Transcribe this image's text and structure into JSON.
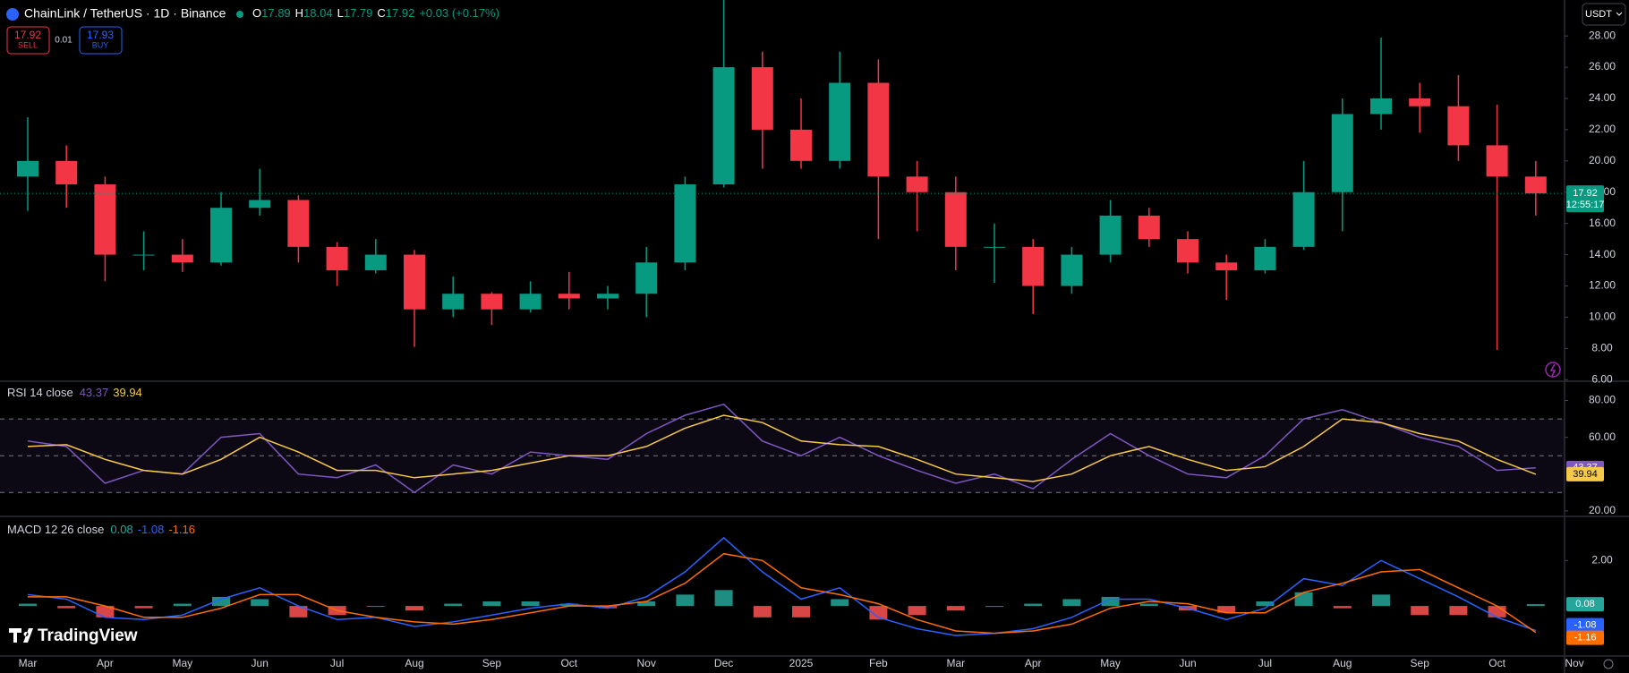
{
  "header": {
    "symbol": "ChainLink / TetherUS · 1D · Binance",
    "o": "O",
    "open": "17.89",
    "h": "H",
    "high": "18.04",
    "l": "L",
    "low": "17.79",
    "c": "C",
    "close": "17.92",
    "change": "+0.03 (+0.17%)"
  },
  "trade": {
    "sell_price": "17.92",
    "sell": "SELL",
    "spread": "0.01",
    "buy_price": "17.93",
    "buy": "BUY"
  },
  "currency": "USDT",
  "countdown": "12:55:17",
  "brand": "TradingView",
  "chart_data": [
    {
      "type": "candlestick",
      "categories": [
        "Mar",
        null,
        "Apr",
        null,
        "May",
        null,
        "Jun",
        null,
        "Jul",
        null,
        "Aug",
        null,
        "Sep",
        null,
        "Oct",
        null,
        "Nov",
        null,
        "Dec",
        null,
        "2025",
        null,
        "Feb",
        null,
        "Mar",
        null,
        "Apr",
        null,
        "May",
        null,
        "Jun",
        null,
        "Jul",
        null,
        "Aug",
        null,
        "Sep",
        null,
        "Oct",
        null,
        "Nov"
      ],
      "open": [
        19,
        20,
        18.5,
        14,
        14,
        13.5,
        17,
        17.5,
        14.5,
        13,
        14,
        10.5,
        11.5,
        10.5,
        11.5,
        11.2,
        11.5,
        13.5,
        18.5,
        26,
        22,
        20,
        25,
        19,
        18,
        14.5,
        14.5,
        12,
        14,
        16.5,
        15,
        13.5,
        13,
        14.5,
        18,
        23,
        24,
        23.5,
        21,
        19,
        null
      ],
      "high": [
        22.8,
        21,
        19,
        15.5,
        15,
        18,
        19.5,
        17.8,
        14.8,
        15,
        14.3,
        12.6,
        11.6,
        12.3,
        12.9,
        12,
        14.5,
        19,
        30.9,
        27,
        24,
        27,
        26.5,
        20,
        19,
        16,
        15,
        14.5,
        17.5,
        17,
        15.5,
        14,
        15,
        20,
        24,
        27.9,
        25,
        25.5,
        23.6,
        20,
        null
      ],
      "low": [
        16.8,
        17,
        12.3,
        13,
        12.9,
        13.3,
        16.5,
        13.5,
        12,
        12.8,
        8.1,
        10,
        9.5,
        10.3,
        10.5,
        10.5,
        10,
        13,
        18.3,
        19.5,
        19.5,
        19.5,
        15,
        15.5,
        13,
        12.2,
        10.2,
        11.5,
        13.5,
        14.5,
        12.8,
        11.1,
        12.8,
        14.3,
        15.5,
        22,
        21.8,
        20,
        7.9,
        16.5,
        null
      ],
      "close": [
        20,
        18.5,
        14,
        14,
        13.5,
        17,
        17.5,
        14.5,
        13,
        14,
        10.5,
        11.5,
        10.5,
        11.5,
        11.2,
        11.5,
        13.5,
        18.5,
        26,
        22,
        20,
        25,
        19,
        18,
        14.5,
        14.5,
        12,
        14,
        16.5,
        15,
        13.5,
        13,
        14.5,
        18,
        23,
        24,
        23.5,
        21,
        19,
        17.92,
        null
      ],
      "up_color": "#089981",
      "down_color": "#f23645",
      "ylim": [
        5.9,
        30.3
      ],
      "yticks": [
        {
          "value": 6,
          "label": "6.00"
        },
        {
          "value": 8,
          "label": "8.00"
        },
        {
          "value": 10,
          "label": "10.00"
        },
        {
          "value": 12,
          "label": "12.00"
        },
        {
          "value": 14,
          "label": "14.00"
        },
        {
          "value": 16,
          "label": "16.00"
        },
        {
          "value": 18,
          "label": "18.00"
        },
        {
          "value": 20,
          "label": "20.00"
        },
        {
          "value": 22,
          "label": "22.00"
        },
        {
          "value": 24,
          "label": "24.00"
        },
        {
          "value": 26,
          "label": "26.00"
        },
        {
          "value": 28,
          "label": "28.00"
        }
      ],
      "grid": false
    },
    {
      "type": "rsi",
      "title": "RSI 14 close",
      "series": [
        {
          "color": "#7e57c2",
          "values": [
            58,
            55,
            35,
            42,
            40,
            60,
            62,
            40,
            38,
            45,
            30,
            45,
            40,
            52,
            50,
            48,
            62,
            72,
            78,
            58,
            50,
            60,
            50,
            42,
            35,
            40,
            32,
            48,
            62,
            50,
            40,
            38,
            50,
            70,
            75,
            68,
            60,
            55,
            42,
            43.37,
            null
          ]
        },
        {
          "color": "#f7c948",
          "values": [
            55,
            56,
            48,
            42,
            40,
            48,
            60,
            52,
            42,
            42,
            38,
            40,
            42,
            46,
            50,
            50,
            55,
            65,
            72,
            68,
            58,
            56,
            55,
            48,
            40,
            38,
            36,
            40,
            50,
            55,
            48,
            42,
            44,
            55,
            70,
            68,
            62,
            58,
            48,
            39.94,
            null
          ]
        }
      ],
      "bands": [
        30,
        50,
        70
      ],
      "ylim": [
        17,
        90
      ],
      "yticks": [
        {
          "value": 20,
          "label": "20.00"
        },
        {
          "value": 60,
          "label": "60.00"
        },
        {
          "value": 80,
          "label": "80.00"
        }
      ]
    },
    {
      "type": "macd",
      "title": "MACD 12 26 close",
      "histogram": {
        "up_color": "#26a69a",
        "down_color": "#ff5252",
        "values": [
          0.1,
          -0.1,
          -0.5,
          -0.1,
          0.1,
          0.4,
          0.3,
          -0.5,
          -0.4,
          0,
          -0.2,
          0.1,
          0.2,
          0.2,
          0.1,
          -0.1,
          0.2,
          0.5,
          0.7,
          -0.5,
          -0.5,
          0.3,
          -0.6,
          -0.4,
          -0.2,
          0,
          0.1,
          0.3,
          0.4,
          0.1,
          -0.2,
          -0.3,
          0.2,
          0.6,
          -0.1,
          0.5,
          -0.4,
          -0.4,
          -0.5,
          0.08,
          null
        ]
      },
      "series": [
        {
          "color": "#2962ff",
          "values": [
            0.5,
            0.3,
            -0.5,
            -0.6,
            -0.4,
            0.3,
            0.8,
            0,
            -0.6,
            -0.5,
            -0.9,
            -0.7,
            -0.4,
            -0.1,
            0.1,
            -0.1,
            0.4,
            1.5,
            3.0,
            1.5,
            0.3,
            0.8,
            -0.5,
            -1.0,
            -1.3,
            -1.2,
            -1.0,
            -0.5,
            0.3,
            0.3,
            -0.1,
            -0.6,
            -0.1,
            1.2,
            0.9,
            2.0,
            1.2,
            0.4,
            -0.5,
            -1.08,
            null
          ]
        },
        {
          "color": "#ff6d00",
          "values": [
            0.4,
            0.4,
            0,
            -0.5,
            -0.5,
            -0.1,
            0.5,
            0.5,
            -0.2,
            -0.5,
            -0.7,
            -0.8,
            -0.6,
            -0.3,
            0,
            0,
            0.2,
            1.0,
            2.3,
            2.0,
            0.8,
            0.5,
            0.1,
            -0.6,
            -1.1,
            -1.2,
            -1.1,
            -0.8,
            -0.1,
            0.2,
            0.1,
            -0.3,
            -0.3,
            0.6,
            1.0,
            1.5,
            1.6,
            0.8,
            0,
            -1.16,
            null
          ]
        }
      ],
      "ylim": [
        -2.2,
        3.9
      ],
      "yticks": [
        {
          "value": 2,
          "label": "2.00"
        }
      ]
    }
  ]
}
